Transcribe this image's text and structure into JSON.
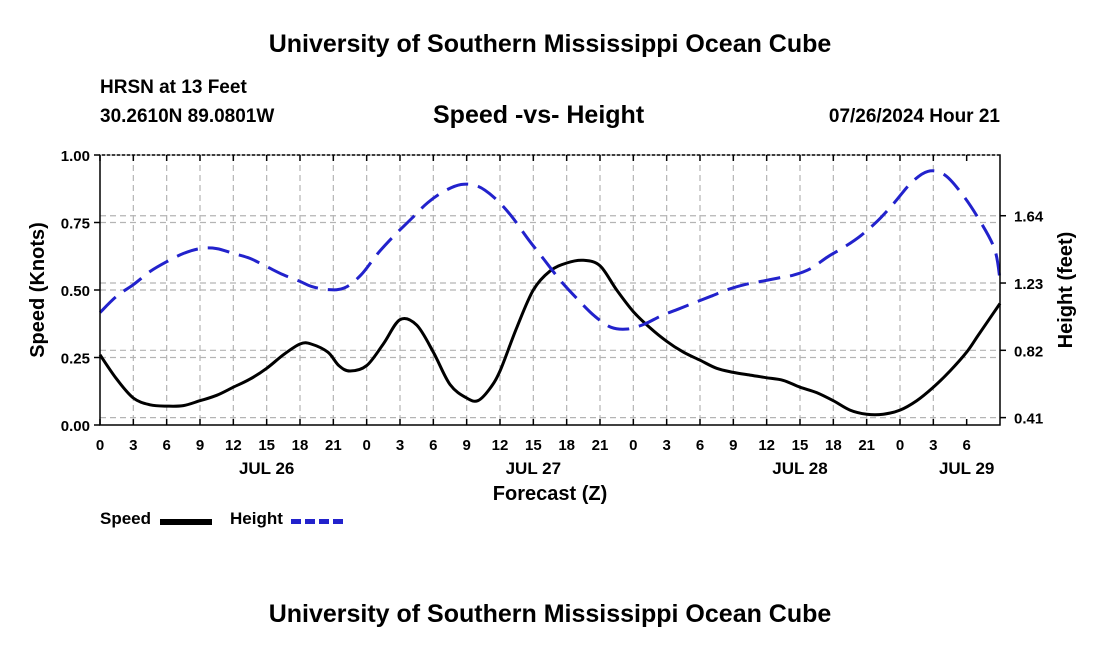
{
  "header": {
    "title": "University of Southern Mississippi Ocean Cube",
    "station": "HRSN at 13 Feet",
    "coordinates": "30.2610N  89.0801W",
    "chart_title": "Speed -vs- Height",
    "timestamp": "07/26/2024 Hour 21"
  },
  "footer": {
    "title": "University of Southern Mississippi Ocean Cube"
  },
  "legend": {
    "speed_label": "Speed",
    "height_label": "Height"
  },
  "colors": {
    "speed": "#000000",
    "height": "#2222cc",
    "grid": "#b4b4b4"
  },
  "chart_data": {
    "type": "line",
    "title": "Speed -vs- Height",
    "xlabel": "Forecast (Z)",
    "ylabel": "Speed (Knots)",
    "y2label": "Height (feet)",
    "x_range_hours": [
      0,
      81
    ],
    "x_tick_labels": [
      "0",
      "3",
      "6",
      "9",
      "12",
      "15",
      "18",
      "21",
      "0",
      "3",
      "6",
      "9",
      "12",
      "15",
      "18",
      "21",
      "0",
      "3",
      "6",
      "9",
      "12",
      "15",
      "18",
      "21",
      "0",
      "3",
      "6"
    ],
    "date_labels": [
      {
        "hour": 15,
        "label": "JUL 26"
      },
      {
        "hour": 39,
        "label": "JUL 27"
      },
      {
        "hour": 63,
        "label": "JUL 28"
      },
      {
        "hour": 78,
        "label": "JUL 29"
      }
    ],
    "ylim": [
      0,
      1.0
    ],
    "y_ticks": [
      0,
      0.25,
      0.5,
      0.75,
      1.0
    ],
    "y_tick_labels": [
      "0.00",
      "0.25",
      "0.50",
      "0.75",
      "1.00"
    ],
    "y2_ticks": [
      0.41,
      0.82,
      1.23,
      1.64
    ],
    "y2_tick_labels": [
      "0.41",
      "0.82",
      "1.23",
      "1.64"
    ],
    "y2lim": [
      0.365,
      2.01
    ],
    "series": [
      {
        "name": "Speed",
        "axis": "left",
        "x": [
          0,
          1.5,
          3,
          4.5,
          6,
          7.5,
          9,
          10.5,
          12,
          13.5,
          15,
          16.5,
          18,
          19,
          20.5,
          21.5,
          22.5,
          24,
          25.5,
          27,
          28.5,
          30,
          31.5,
          33,
          34,
          35,
          36,
          37.5,
          39,
          40.5,
          42,
          43.5,
          45,
          46.5,
          48,
          49.5,
          51,
          52.5,
          54,
          55.5,
          57,
          58.5,
          60,
          61.5,
          63,
          64.5,
          66,
          67.5,
          69,
          70.5,
          72,
          73.5,
          75,
          76.5,
          78,
          79,
          80,
          81
        ],
        "values": [
          0.26,
          0.17,
          0.1,
          0.075,
          0.07,
          0.072,
          0.09,
          0.11,
          0.14,
          0.17,
          0.21,
          0.26,
          0.3,
          0.3,
          0.27,
          0.22,
          0.2,
          0.22,
          0.3,
          0.39,
          0.37,
          0.27,
          0.15,
          0.1,
          0.09,
          0.13,
          0.2,
          0.36,
          0.5,
          0.57,
          0.6,
          0.61,
          0.59,
          0.5,
          0.42,
          0.36,
          0.31,
          0.27,
          0.24,
          0.21,
          0.195,
          0.185,
          0.175,
          0.165,
          0.14,
          0.12,
          0.09,
          0.055,
          0.04,
          0.04,
          0.055,
          0.09,
          0.14,
          0.2,
          0.27,
          0.33,
          0.39,
          0.45
        ]
      },
      {
        "name": "Height",
        "axis": "right",
        "x": [
          0,
          1.5,
          3,
          4.5,
          6,
          7.5,
          9,
          10.5,
          12,
          13.5,
          15,
          16.5,
          18,
          19,
          20.5,
          22,
          23.5,
          25,
          26.5,
          28,
          29.5,
          31,
          32.5,
          34,
          35.5,
          37,
          38.5,
          40,
          41.5,
          43,
          44.5,
          46,
          47.5,
          49,
          50.5,
          52,
          53.5,
          55,
          56.5,
          58,
          59.5,
          61,
          62.5,
          64,
          65.5,
          67,
          68.5,
          70,
          71.5,
          73,
          74.5,
          76,
          77.5,
          79,
          80.5,
          81
        ],
        "values": [
          1.05,
          1.15,
          1.22,
          1.3,
          1.36,
          1.41,
          1.44,
          1.44,
          1.41,
          1.38,
          1.33,
          1.28,
          1.24,
          1.21,
          1.19,
          1.2,
          1.28,
          1.41,
          1.52,
          1.62,
          1.72,
          1.79,
          1.83,
          1.82,
          1.75,
          1.64,
          1.5,
          1.37,
          1.24,
          1.13,
          1.03,
          0.96,
          0.95,
          0.98,
          1.03,
          1.07,
          1.11,
          1.15,
          1.19,
          1.22,
          1.24,
          1.26,
          1.28,
          1.32,
          1.39,
          1.45,
          1.52,
          1.61,
          1.72,
          1.84,
          1.91,
          1.89,
          1.78,
          1.63,
          1.44,
          1.25
        ]
      }
    ]
  }
}
